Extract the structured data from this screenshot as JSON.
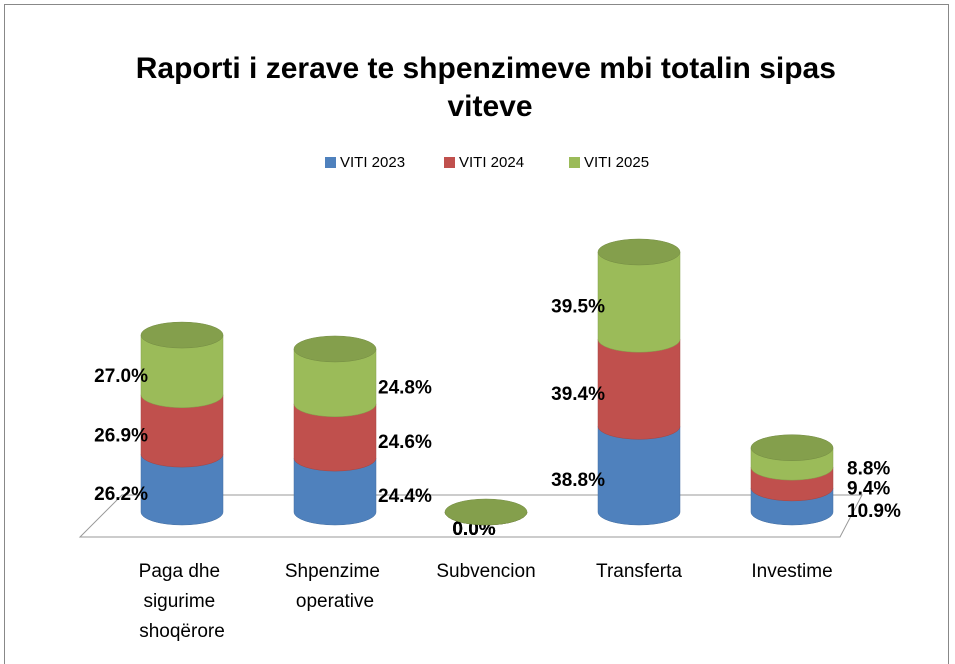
{
  "chart_data": {
    "type": "bar",
    "stacked": true,
    "three_d": true,
    "title": "Raporti i zerave te shpenzimeve mbi totalin sipas viteve",
    "categories": [
      "Paga dhe sigurime shoqërore",
      "Shpenzime operative",
      "Subvencion",
      "Transferta",
      "Investime"
    ],
    "series": [
      {
        "name": "VITI 2023",
        "color": "#4f81bd",
        "values": [
          26.2,
          24.4,
          0.0,
          38.8,
          10.9
        ],
        "value_labels": [
          "26.2%",
          "24.4%",
          "0.0%",
          "38.8%",
          "10.9%"
        ]
      },
      {
        "name": "VITI 2024",
        "color": "#c0504d",
        "values": [
          26.9,
          24.6,
          0.0,
          39.4,
          9.4
        ],
        "value_labels": [
          "26.9%",
          "24.6%",
          "0.0%",
          "39.4%",
          "9.4%"
        ]
      },
      {
        "name": "VITI 2025",
        "color": "#9bbb59",
        "values": [
          27.0,
          24.8,
          0.0,
          39.5,
          8.8
        ],
        "value_labels": [
          "27.0%",
          "24.8%",
          "0.0%",
          "39.5%",
          "8.8%"
        ]
      }
    ],
    "legend": "top"
  }
}
